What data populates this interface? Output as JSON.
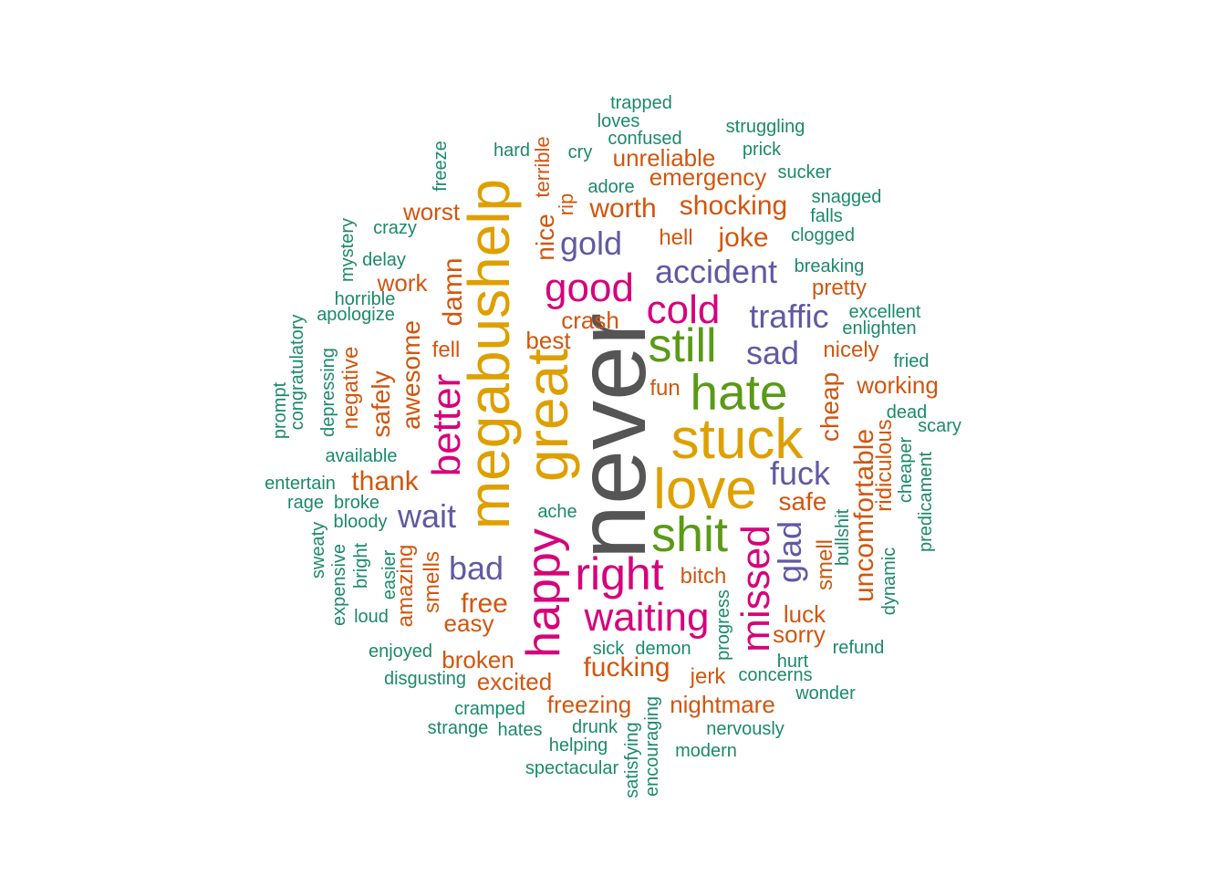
{
  "colors": {
    "gray": "#555555",
    "gold": "#dea000",
    "magenta": "#d6037b",
    "green": "#5a9a16",
    "purple": "#6159a3",
    "orange": "#d1560e",
    "teal": "#1b8a68"
  },
  "words": [
    {
      "text": "never",
      "color": "gray"
    },
    {
      "text": "megabushelp",
      "color": "gold"
    },
    {
      "text": "great",
      "color": "gold"
    },
    {
      "text": "stuck",
      "color": "gold"
    },
    {
      "text": "love",
      "color": "gold"
    },
    {
      "text": "happy",
      "color": "magenta"
    },
    {
      "text": "hate",
      "color": "green"
    },
    {
      "text": "shit",
      "color": "green"
    },
    {
      "text": "still",
      "color": "green"
    },
    {
      "text": "right",
      "color": "magenta"
    },
    {
      "text": "waiting",
      "color": "magenta"
    },
    {
      "text": "missed",
      "color": "magenta"
    },
    {
      "text": "good",
      "color": "magenta"
    },
    {
      "text": "better",
      "color": "magenta"
    },
    {
      "text": "cold",
      "color": "magenta"
    },
    {
      "text": "accident",
      "color": "purple"
    },
    {
      "text": "traffic",
      "color": "purple"
    },
    {
      "text": "gold",
      "color": "purple"
    },
    {
      "text": "fuck",
      "color": "purple"
    },
    {
      "text": "wait",
      "color": "purple"
    },
    {
      "text": "bad",
      "color": "purple"
    },
    {
      "text": "glad",
      "color": "purple"
    },
    {
      "text": "sad",
      "color": "purple"
    },
    {
      "text": "damn",
      "color": "orange"
    },
    {
      "text": "nice",
      "color": "orange"
    },
    {
      "text": "awesome",
      "color": "orange"
    },
    {
      "text": "safely",
      "color": "orange"
    },
    {
      "text": "thank",
      "color": "orange"
    },
    {
      "text": "shocking",
      "color": "orange"
    },
    {
      "text": "worth",
      "color": "orange"
    },
    {
      "text": "joke",
      "color": "orange"
    },
    {
      "text": "uncomfortable",
      "color": "orange"
    },
    {
      "text": "fucking",
      "color": "orange"
    },
    {
      "text": "free",
      "color": "orange"
    },
    {
      "text": "cheap",
      "color": "orange"
    },
    {
      "text": "safe",
      "color": "orange"
    },
    {
      "text": "emergency",
      "color": "orange"
    },
    {
      "text": "unreliable",
      "color": "orange"
    },
    {
      "text": "nightmare",
      "color": "orange"
    },
    {
      "text": "freezing",
      "color": "orange"
    },
    {
      "text": "broken",
      "color": "orange"
    },
    {
      "text": "excited",
      "color": "orange"
    },
    {
      "text": "ridiculous",
      "color": "orange"
    },
    {
      "text": "working",
      "color": "orange"
    },
    {
      "text": "worst",
      "color": "orange"
    },
    {
      "text": "work",
      "color": "orange"
    },
    {
      "text": "crash",
      "color": "orange"
    },
    {
      "text": "best",
      "color": "orange"
    },
    {
      "text": "fell",
      "color": "orange"
    },
    {
      "text": "fun",
      "color": "orange"
    },
    {
      "text": "hell",
      "color": "orange"
    },
    {
      "text": "pretty",
      "color": "orange"
    },
    {
      "text": "nicely",
      "color": "orange"
    },
    {
      "text": "negative",
      "color": "orange"
    },
    {
      "text": "amazing",
      "color": "orange"
    },
    {
      "text": "smells",
      "color": "orange"
    },
    {
      "text": "easy",
      "color": "orange"
    },
    {
      "text": "bitch",
      "color": "orange"
    },
    {
      "text": "luck",
      "color": "orange"
    },
    {
      "text": "sorry",
      "color": "orange"
    },
    {
      "text": "smell",
      "color": "orange"
    },
    {
      "text": "jerk",
      "color": "orange"
    },
    {
      "text": "terrible",
      "color": "orange"
    },
    {
      "text": "rip",
      "color": "orange"
    },
    {
      "text": "trapped",
      "color": "teal"
    },
    {
      "text": "loves",
      "color": "teal"
    },
    {
      "text": "confused",
      "color": "teal"
    },
    {
      "text": "struggling",
      "color": "teal"
    },
    {
      "text": "hard",
      "color": "teal"
    },
    {
      "text": "cry",
      "color": "teal"
    },
    {
      "text": "prick",
      "color": "teal"
    },
    {
      "text": "sucker",
      "color": "teal"
    },
    {
      "text": "adore",
      "color": "teal"
    },
    {
      "text": "snagged",
      "color": "teal"
    },
    {
      "text": "falls",
      "color": "teal"
    },
    {
      "text": "clogged",
      "color": "teal"
    },
    {
      "text": "crazy",
      "color": "teal"
    },
    {
      "text": "delay",
      "color": "teal"
    },
    {
      "text": "breaking",
      "color": "teal"
    },
    {
      "text": "horrible",
      "color": "teal"
    },
    {
      "text": "apologize",
      "color": "teal"
    },
    {
      "text": "excellent",
      "color": "teal"
    },
    {
      "text": "enlighten",
      "color": "teal"
    },
    {
      "text": "fried",
      "color": "teal"
    },
    {
      "text": "dead",
      "color": "teal"
    },
    {
      "text": "scary",
      "color": "teal"
    },
    {
      "text": "available",
      "color": "teal"
    },
    {
      "text": "entertain",
      "color": "teal"
    },
    {
      "text": "rage",
      "color": "teal"
    },
    {
      "text": "broke",
      "color": "teal"
    },
    {
      "text": "bloody",
      "color": "teal"
    },
    {
      "text": "ache",
      "color": "teal"
    },
    {
      "text": "loud",
      "color": "teal"
    },
    {
      "text": "enjoyed",
      "color": "teal"
    },
    {
      "text": "disgusting",
      "color": "teal"
    },
    {
      "text": "sick",
      "color": "teal"
    },
    {
      "text": "demon",
      "color": "teal"
    },
    {
      "text": "hurt",
      "color": "teal"
    },
    {
      "text": "refund",
      "color": "teal"
    },
    {
      "text": "concerns",
      "color": "teal"
    },
    {
      "text": "wonder",
      "color": "teal"
    },
    {
      "text": "cramped",
      "color": "teal"
    },
    {
      "text": "strange",
      "color": "teal"
    },
    {
      "text": "hates",
      "color": "teal"
    },
    {
      "text": "drunk",
      "color": "teal"
    },
    {
      "text": "helping",
      "color": "teal"
    },
    {
      "text": "nervously",
      "color": "teal"
    },
    {
      "text": "modern",
      "color": "teal"
    },
    {
      "text": "spectacular",
      "color": "teal"
    },
    {
      "text": "freeze",
      "color": "teal"
    },
    {
      "text": "mystery",
      "color": "teal"
    },
    {
      "text": "prompt",
      "color": "teal"
    },
    {
      "text": "congratulatory",
      "color": "teal"
    },
    {
      "text": "depressing",
      "color": "teal"
    },
    {
      "text": "sweaty",
      "color": "teal"
    },
    {
      "text": "expensive",
      "color": "teal"
    },
    {
      "text": "bright",
      "color": "teal"
    },
    {
      "text": "easier",
      "color": "teal"
    },
    {
      "text": "progress",
      "color": "teal"
    },
    {
      "text": "satisfying",
      "color": "teal"
    },
    {
      "text": "encouraging",
      "color": "teal"
    },
    {
      "text": "bullshit",
      "color": "teal"
    },
    {
      "text": "dynamic",
      "color": "teal"
    },
    {
      "text": "cheaper",
      "color": "teal"
    },
    {
      "text": "predicament",
      "color": "teal"
    }
  ]
}
